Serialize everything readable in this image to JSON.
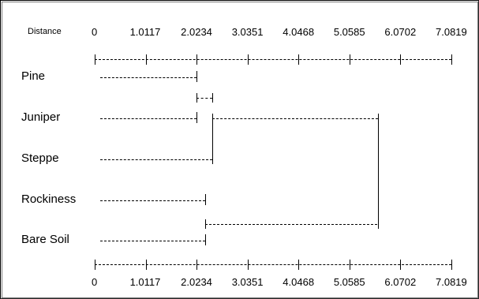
{
  "dendrogram": {
    "distance_label": "Distance",
    "ticks": [
      "0",
      "1.0117",
      "2.0234",
      "3.0351",
      "4.0468",
      "5.0585",
      "6.0702",
      "7.0819"
    ],
    "scale_max": 7.0819,
    "leaves": [
      "Pine",
      "Juniper",
      "Steppe",
      "Rockiness",
      "Bare Soil"
    ],
    "merges": [
      {
        "a": "Pine",
        "b": "Juniper",
        "height": 2.0234
      },
      {
        "a": "Rockiness",
        "b": "Bare Soil",
        "height": 2.2
      },
      {
        "a": "Pine+Juniper",
        "b": "Steppe",
        "height": 2.33
      },
      {
        "a": "Pine+Juniper+Steppe",
        "b": "Rockiness+Bare Soil",
        "height": 5.62
      }
    ]
  }
}
